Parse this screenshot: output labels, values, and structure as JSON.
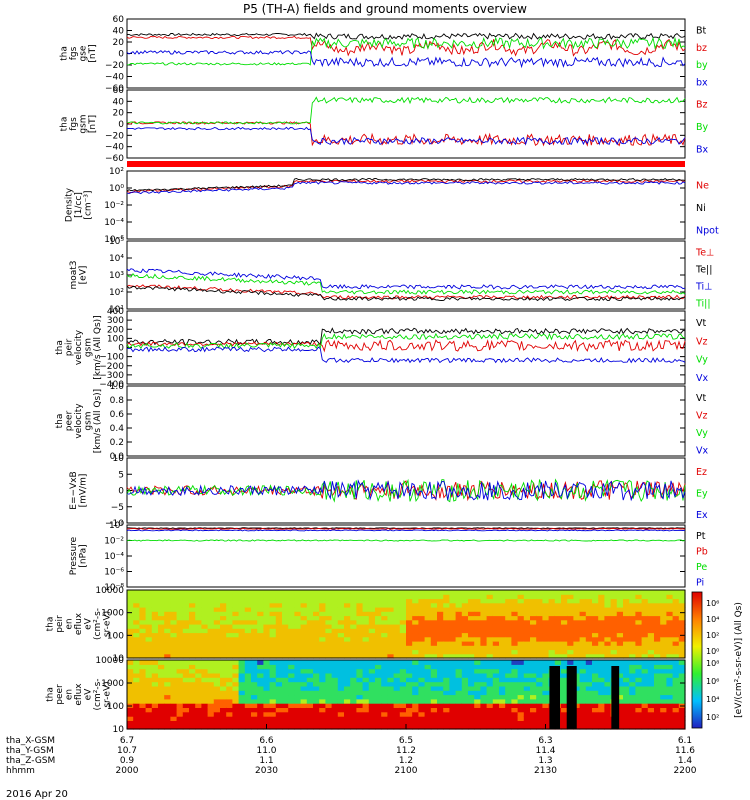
{
  "title": "P5 (TH-A) fields and ground moments overview",
  "date_label": "2016 Apr 20",
  "colors": {
    "black": "#000000",
    "red": "#e00000",
    "green": "#00dd00",
    "blue": "#0000dd",
    "bar_red": "#ff0000"
  },
  "chart_data": {
    "type": "line",
    "xaxis": {
      "rows": [
        {
          "label": "tha_X-GSM",
          "values": [
            "6.7",
            "6.6",
            "6.5",
            "6.3",
            "6.1"
          ]
        },
        {
          "label": "tha_Y-GSM",
          "values": [
            "10.7",
            "11.0",
            "11.2",
            "11.4",
            "11.6"
          ]
        },
        {
          "label": "tha_Z-GSM",
          "values": [
            "0.9",
            "1.1",
            "1.2",
            "1.3",
            "1.4"
          ]
        },
        {
          "label": "hhmm",
          "values": [
            "2000",
            "2030",
            "2100",
            "2130",
            "2200"
          ]
        }
      ]
    },
    "panels": [
      {
        "id": "fgs-gse",
        "ylabel": [
          "tha",
          "fgs",
          "gse",
          "[nT]"
        ],
        "ticks": [
          "60",
          "40",
          "20",
          "0",
          "−20",
          "−40",
          "−60"
        ],
        "ylim": [
          -60,
          60
        ],
        "legend": [
          {
            "name": "Bt",
            "color": "#000000"
          },
          {
            "name": "bz",
            "color": "#e00000"
          },
          {
            "name": "by",
            "color": "#00dd00"
          },
          {
            "name": "bx",
            "color": "#0000dd"
          }
        ]
      },
      {
        "id": "fgs-gsm",
        "ylabel": [
          "tha",
          "fgs",
          "gsm",
          "[nT]"
        ],
        "ticks": [
          "60",
          "40",
          "20",
          "0",
          "−20",
          "−40",
          "−60"
        ],
        "ylim": [
          -60,
          60
        ],
        "legend": [
          {
            "name": "Bz",
            "color": "#e00000"
          },
          {
            "name": "By",
            "color": "#00dd00"
          },
          {
            "name": "Bx",
            "color": "#0000dd"
          }
        ]
      },
      {
        "id": "density",
        "ylabel": [
          "Density",
          "[1/cc]",
          "[cm⁻³]"
        ],
        "ticks": [
          "10²",
          "10⁰",
          "10⁻²",
          "10⁻⁴",
          "10⁻⁶"
        ],
        "ylim": [
          -6,
          2
        ],
        "log": true,
        "legend": [
          {
            "name": "Ne",
            "color": "#e00000"
          },
          {
            "name": "Ni",
            "color": "#000000"
          },
          {
            "name": "Npot",
            "color": "#0000dd"
          }
        ]
      },
      {
        "id": "temperature",
        "ylabel": [
          "moat3",
          "[eV]"
        ],
        "ticks": [
          "10⁵",
          "10⁴",
          "10³",
          "10²",
          "10¹"
        ],
        "ylim": [
          1,
          5
        ],
        "log": true,
        "legend": [
          {
            "name": "Te⊥",
            "color": "#e00000"
          },
          {
            "name": "Te||",
            "color": "#000000"
          },
          {
            "name": "Ti⊥",
            "color": "#0000dd"
          },
          {
            "name": "Ti||",
            "color": "#00dd00"
          }
        ]
      },
      {
        "id": "peir-velocity",
        "ylabel": [
          "tha",
          "peir",
          "velocity",
          "gsm",
          "[km/s (All Qs)]"
        ],
        "ticks": [
          "400",
          "300",
          "200",
          "100",
          "0",
          "−100",
          "−200",
          "−300",
          "−400"
        ],
        "ylim": [
          -400,
          400
        ],
        "legend": [
          {
            "name": "Vt",
            "color": "#000000"
          },
          {
            "name": "Vz",
            "color": "#e00000"
          },
          {
            "name": "Vy",
            "color": "#00dd00"
          },
          {
            "name": "Vx",
            "color": "#0000dd"
          }
        ]
      },
      {
        "id": "peer-velocity",
        "ylabel": [
          "tha",
          "peer",
          "velocity",
          "gsm",
          "[km/s (All Qs)]"
        ],
        "ticks": [
          "1.0",
          "0.8",
          "0.6",
          "0.4",
          "0.2",
          "0.0"
        ],
        "ylim": [
          0,
          1
        ],
        "legend": [
          {
            "name": "Vt",
            "color": "#000000"
          },
          {
            "name": "Vz",
            "color": "#e00000"
          },
          {
            "name": "Vy",
            "color": "#00dd00"
          },
          {
            "name": "Vx",
            "color": "#0000dd"
          }
        ]
      },
      {
        "id": "efield",
        "ylabel": [
          "E=−VxB",
          "[mV/m]"
        ],
        "ticks": [
          "10",
          "5",
          "0",
          "−5",
          "−10"
        ],
        "ylim": [
          -10,
          10
        ],
        "legend": [
          {
            "name": "Ez",
            "color": "#e00000"
          },
          {
            "name": "Ey",
            "color": "#00dd00"
          },
          {
            "name": "Ex",
            "color": "#0000dd"
          }
        ]
      },
      {
        "id": "pressure",
        "ylabel": [
          "Pressure",
          "[nPa]"
        ],
        "ticks": [
          "10⁰",
          "10⁻²",
          "10⁻⁴",
          "10⁻⁶",
          "10⁻⁸"
        ],
        "ylim": [
          -8,
          0
        ],
        "log": true,
        "legend": [
          {
            "name": "Pt",
            "color": "#000000"
          },
          {
            "name": "Pb",
            "color": "#e00000"
          },
          {
            "name": "Pe",
            "color": "#00dd00"
          },
          {
            "name": "Pi",
            "color": "#0000dd"
          }
        ]
      },
      {
        "id": "peir-eflux",
        "type": "heatmap",
        "ylabel": [
          "tha",
          "peir",
          "en",
          "eflux",
          "eV",
          "(cm²-s-",
          "sr-eV)"
        ],
        "ticks": [
          "10000",
          "1000",
          "100",
          "10"
        ]
      },
      {
        "id": "peer-eflux",
        "type": "heatmap",
        "ylabel": [
          "tha",
          "peer",
          "en",
          "eflux",
          "eV",
          "(cm²-s-",
          "sr-eV)"
        ],
        "ticks": [
          "10000",
          "1000",
          "100",
          "10"
        ]
      }
    ],
    "colorbar": {
      "label": "[eV/(cm²-s-sr-eV)] (All Qs)",
      "ticks_upper": [
        "10⁶",
        "10⁴",
        "10²",
        "10⁰"
      ],
      "ticks_lower": [
        "10⁸",
        "10⁶",
        "10⁴",
        "10²"
      ]
    }
  }
}
